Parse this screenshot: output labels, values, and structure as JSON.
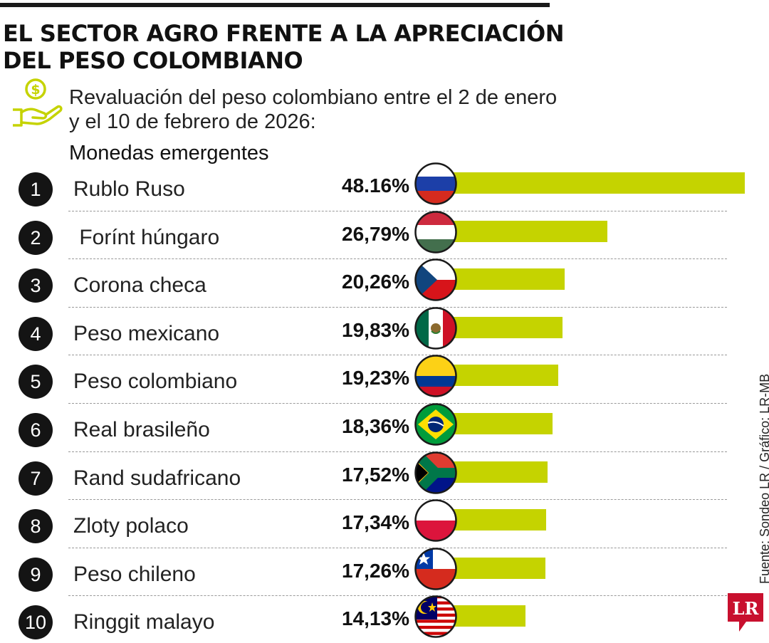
{
  "header": {
    "title_line1": "EL SECTOR AGRO FRENTE A LA APRECIACIÓN",
    "title_line2": "DEL PESO COLOMBIANO",
    "subtitle_line1": "Revaluación del peso colombiano entre el 2 de enero",
    "subtitle_line2": "y el 10 de febrero de 2026:",
    "group_label": "Monedas emergentes",
    "icon": "money-hand-icon"
  },
  "source": "Fuente: Sondeo LR / Gráfico: LR-MB",
  "logo_text": "LR",
  "colors": {
    "bar": "#c5d300",
    "badge": "#141414",
    "logo": "#c8102e"
  },
  "chart_data": {
    "type": "bar",
    "orientation": "horizontal",
    "categories": [
      "Rublo Ruso",
      " Forínt húngaro",
      "Corona checa",
      "Peso mexicano",
      "Peso colombiano",
      "Real brasileño",
      "Rand sudafricano",
      "Zloty polaco",
      "Peso chileno",
      "Ringgit malayo"
    ],
    "ranks": [
      "1",
      "2",
      "3",
      "4",
      "5",
      "6",
      "7",
      "8",
      "9",
      "10"
    ],
    "values": [
      48.16,
      26.79,
      20.26,
      19.83,
      19.23,
      18.36,
      17.52,
      17.34,
      17.26,
      14.13
    ],
    "value_labels": [
      "48.16%",
      "26,79%",
      "20,26%",
      "19,83%",
      "19,23%",
      "18,36%",
      "17,52%",
      "17,34%",
      "17,26%",
      "14,13%"
    ],
    "flags": [
      "russia",
      "hungary",
      "czech-republic",
      "mexico",
      "colombia",
      "brazil",
      "south-africa",
      "poland",
      "chile",
      "malaysia"
    ],
    "xlim": [
      0,
      48.16
    ],
    "grid": false,
    "legend": "none"
  }
}
